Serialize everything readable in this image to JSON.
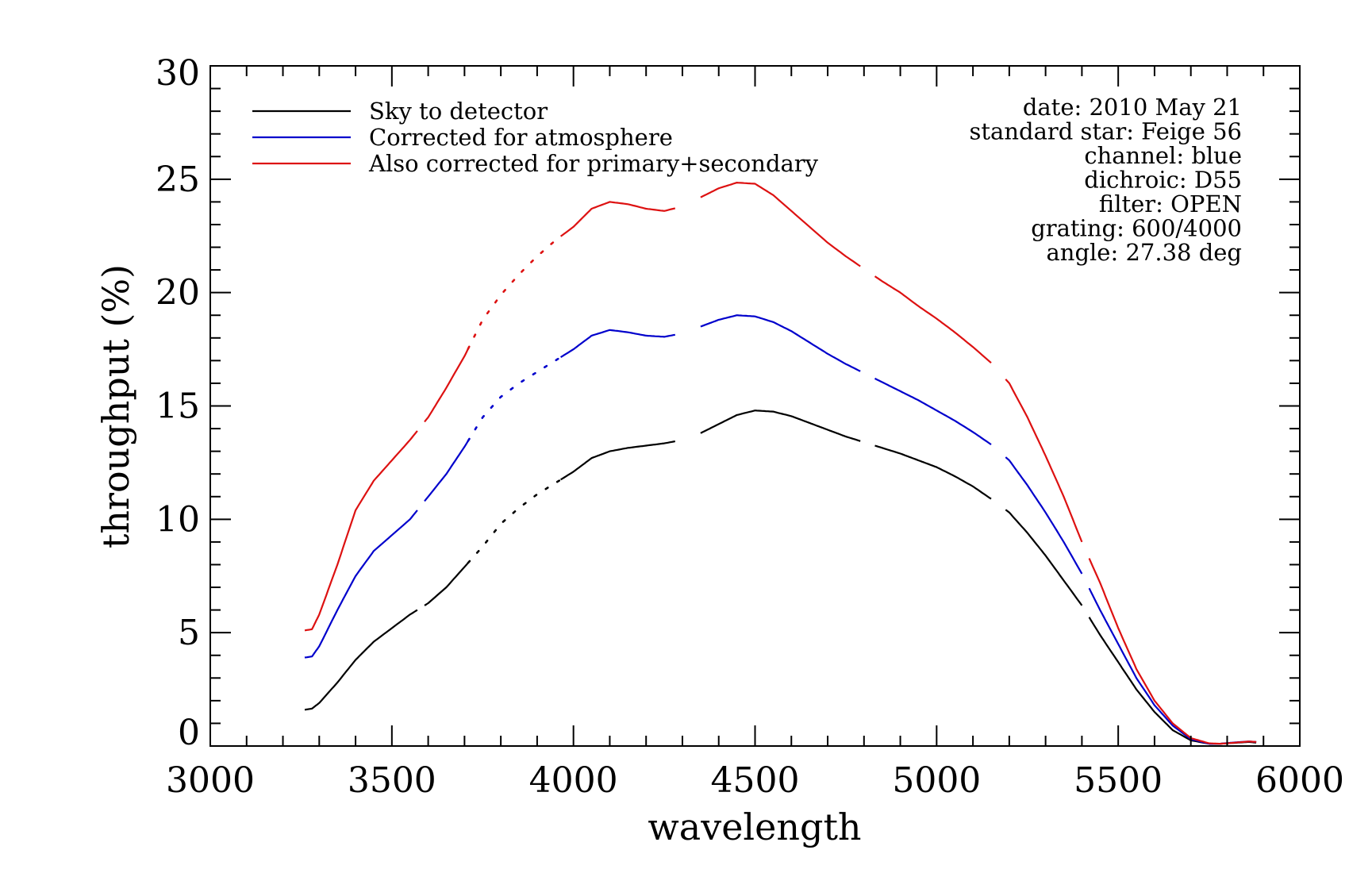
{
  "chart_data": {
    "type": "line",
    "title": "",
    "xlabel": "wavelength",
    "ylabel": "throughput (%)",
    "xlim": [
      3000,
      6000
    ],
    "ylim": [
      0,
      30
    ],
    "xticks": [
      3000,
      3500,
      4000,
      4500,
      5000,
      5500,
      6000
    ],
    "yticks": [
      0,
      5,
      10,
      15,
      20,
      25,
      30
    ],
    "xticklabels": [
      "3000",
      "3500",
      "4000",
      "4500",
      "5000",
      "5500",
      "6000"
    ],
    "yticklabels": [
      "0",
      "5",
      "10",
      "15",
      "20",
      "25",
      "30"
    ],
    "grid": false,
    "legend_position": "top-left",
    "annotations": [
      "date: 2010 May 21",
      "standard star: Feige 56",
      "channel: blue",
      "dichroic: D55",
      "filter: OPEN",
      "grating: 600/4000",
      "angle: 27.38 deg"
    ],
    "gaps": [
      [
        3570,
        3590
      ],
      [
        4280,
        4350
      ],
      [
        4790,
        4830
      ],
      [
        5150,
        5190
      ],
      [
        5400,
        5420
      ]
    ],
    "dotted_range": [
      3710,
      3960
    ],
    "x": [
      3260,
      3280,
      3300,
      3350,
      3400,
      3450,
      3500,
      3550,
      3600,
      3650,
      3700,
      3750,
      3800,
      3850,
      3900,
      3950,
      4000,
      4050,
      4100,
      4150,
      4200,
      4250,
      4300,
      4350,
      4400,
      4450,
      4500,
      4550,
      4600,
      4650,
      4700,
      4750,
      4800,
      4850,
      4900,
      4950,
      5000,
      5050,
      5100,
      5150,
      5200,
      5250,
      5300,
      5350,
      5400,
      5450,
      5500,
      5550,
      5600,
      5650,
      5700,
      5750,
      5780,
      5800,
      5830,
      5860,
      5880
    ],
    "series": [
      {
        "name": "Sky to detector",
        "color": "#000000",
        "values": [
          1.6,
          1.65,
          1.9,
          2.8,
          3.8,
          4.6,
          5.2,
          5.8,
          6.3,
          7.0,
          7.9,
          8.8,
          9.8,
          10.5,
          11.1,
          11.6,
          12.1,
          12.7,
          13.0,
          13.15,
          13.25,
          13.35,
          13.5,
          13.8,
          14.2,
          14.6,
          14.8,
          14.75,
          14.55,
          14.25,
          13.95,
          13.65,
          13.4,
          13.15,
          12.9,
          12.6,
          12.3,
          11.9,
          11.45,
          10.9,
          10.3,
          9.4,
          8.4,
          7.3,
          6.2,
          4.9,
          3.7,
          2.5,
          1.5,
          0.7,
          0.25,
          0.1,
          0.1,
          0.12,
          0.15,
          0.18,
          0.15
        ]
      },
      {
        "name": "Corrected for atmosphere",
        "color": "#0000cc",
        "values": [
          3.9,
          3.95,
          4.4,
          6.0,
          7.5,
          8.6,
          9.3,
          10.0,
          11.0,
          12.0,
          13.2,
          14.5,
          15.4,
          16.0,
          16.5,
          17.0,
          17.5,
          18.1,
          18.35,
          18.25,
          18.1,
          18.05,
          18.2,
          18.5,
          18.8,
          19.0,
          18.95,
          18.7,
          18.3,
          17.8,
          17.3,
          16.85,
          16.45,
          16.05,
          15.65,
          15.25,
          14.8,
          14.35,
          13.85,
          13.3,
          12.6,
          11.5,
          10.3,
          9.0,
          7.6,
          6.0,
          4.5,
          3.0,
          1.8,
          0.9,
          0.3,
          0.1,
          0.1,
          0.13,
          0.17,
          0.2,
          0.18
        ]
      },
      {
        "name": "Also corrected for primary+secondary",
        "color": "#dd1111",
        "values": [
          5.1,
          5.15,
          5.8,
          8.0,
          10.4,
          11.7,
          12.6,
          13.5,
          14.5,
          15.8,
          17.2,
          18.8,
          19.9,
          20.8,
          21.6,
          22.3,
          22.9,
          23.7,
          24.0,
          23.9,
          23.7,
          23.6,
          23.8,
          24.2,
          24.6,
          24.85,
          24.8,
          24.3,
          23.6,
          22.9,
          22.2,
          21.6,
          21.05,
          20.5,
          20.0,
          19.4,
          18.85,
          18.25,
          17.6,
          16.9,
          16.0,
          14.5,
          12.8,
          11.0,
          9.0,
          7.2,
          5.2,
          3.4,
          2.0,
          1.0,
          0.35,
          0.12,
          0.1,
          0.12,
          0.16,
          0.2,
          0.18
        ]
      }
    ]
  }
}
